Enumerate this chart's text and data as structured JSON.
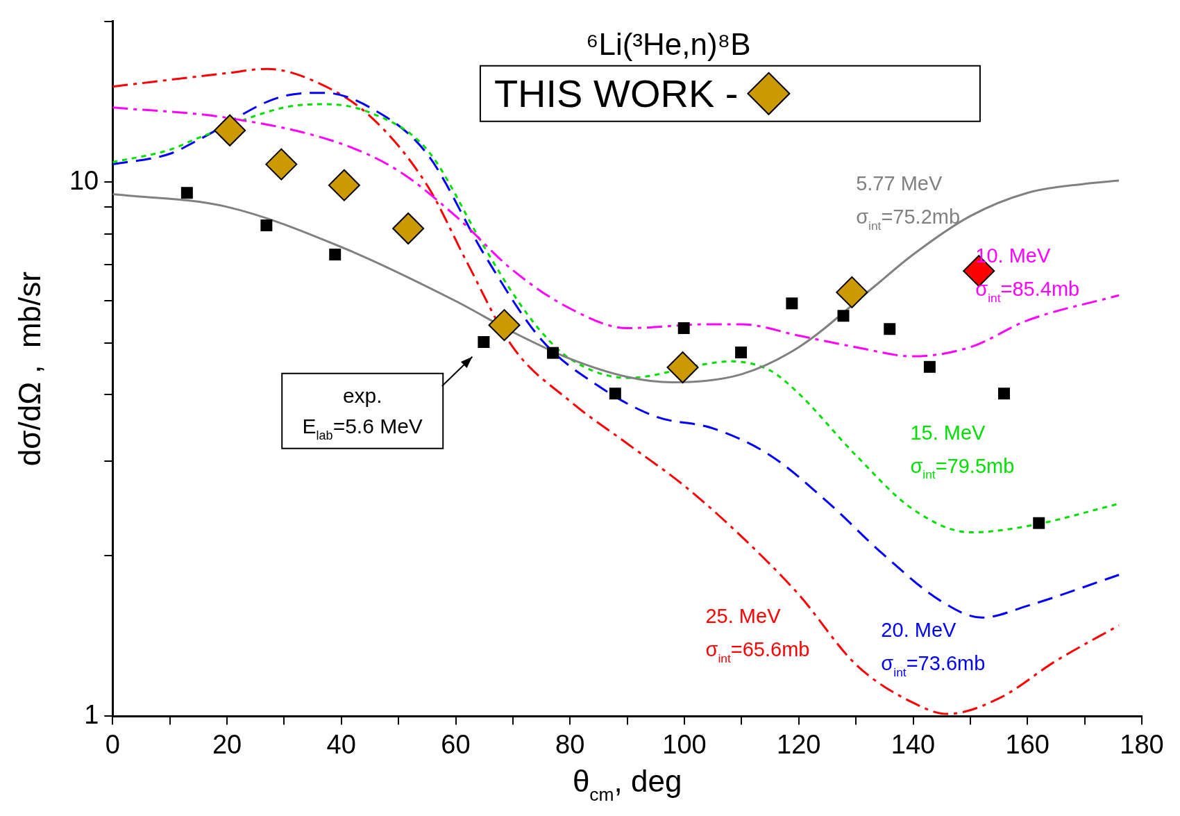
{
  "chart_data": {
    "type": "line",
    "title": "⁶Li(³He,n)⁸B",
    "xlabel": "θ$_{cm}$, deg",
    "ylabel": "dσ/dΩ ,  mb/sr",
    "log": "y",
    "grid": false,
    "legend": "top",
    "xlim": [
      0,
      180
    ],
    "xticks": [
      0,
      {
        "value": 10,
        "label": null
      },
      20,
      {
        "value": 30,
        "label": null
      },
      40,
      {
        "value": 50,
        "label": null
      },
      60,
      {
        "value": 70,
        "label": null
      },
      80,
      {
        "value": 90,
        "label": null
      },
      100,
      {
        "value": 110,
        "label": null
      },
      120,
      {
        "value": 130,
        "label": null
      },
      140,
      {
        "value": 150,
        "label": null
      },
      160,
      {
        "value": 170,
        "label": null
      },
      180
    ],
    "ylim": [
      1,
      20
    ],
    "yticks": [
      1,
      {
        "value": 2,
        "label": null
      },
      {
        "value": 3,
        "label": null
      },
      {
        "value": 4,
        "label": null
      },
      {
        "value": 5,
        "label": null
      },
      {
        "value": 6,
        "label": null
      },
      {
        "value": 7,
        "label": null
      },
      {
        "value": 8,
        "label": null
      },
      {
        "value": 9,
        "label": null
      },
      10,
      {
        "value": 20,
        "label": null
      }
    ],
    "series": [
      {
        "name": "5.77 MeV\nσ$_{int}$=75.2mb",
        "color": "#808080",
        "line_style": "solid",
        "marker": "none",
        "x": [
          0,
          20,
          40,
          60,
          70,
          80,
          90,
          98,
          110,
          120,
          133,
          140,
          150,
          160,
          170,
          176
        ],
        "values": [
          9.5,
          8.99,
          7.56,
          5.99,
          5.24,
          4.67,
          4.32,
          4.22,
          4.37,
          4.91,
          6.35,
          7.32,
          8.64,
          9.55,
          9.93,
          10.07
        ]
      },
      {
        "name": "10. MeV\nσ$_{int}$=85.4mb",
        "color": "#ff00ff",
        "line_style": "dashdot",
        "marker": "none",
        "x": [
          0,
          20,
          40,
          50,
          60,
          70,
          80,
          90,
          104,
          110,
          120,
          130,
          140,
          150,
          160,
          176
        ],
        "values": [
          13.8,
          13.2,
          11.8,
          10.5,
          8.64,
          6.84,
          5.8,
          5.33,
          5.42,
          5.42,
          5.16,
          4.91,
          4.72,
          4.91,
          5.51,
          6.14
        ]
      },
      {
        "name": "15. MeV\nσ$_{int}$=79.5mb",
        "color": "#00e000",
        "line_style": "dotted",
        "marker": "none",
        "x": [
          0,
          10,
          15,
          30,
          37,
          45,
          55,
          65,
          70,
          75,
          80,
          90,
          104,
          108,
          115,
          120,
          130,
          140,
          150,
          160,
          176
        ],
        "values": [
          10.9,
          11.5,
          12.1,
          13.8,
          14.0,
          13.5,
          11.5,
          7.56,
          6.19,
          5.24,
          4.67,
          4.3,
          4.57,
          4.62,
          4.44,
          4.02,
          3.08,
          2.44,
          2.21,
          2.27,
          2.5
        ]
      },
      {
        "name": "20. MeV\nσ$_{int}$=73.6mb",
        "color": "#0000ff",
        "line_style": "dashed",
        "marker": "none",
        "x": [
          0,
          10,
          15,
          30,
          37,
          45,
          55,
          65,
          75,
          85,
          95,
          105,
          115,
          125,
          135,
          145,
          152,
          160,
          176
        ],
        "values": [
          10.8,
          11.3,
          12.0,
          14.5,
          14.7,
          13.8,
          11.3,
          7.32,
          5.07,
          4.15,
          3.64,
          3.46,
          3.08,
          2.52,
          2.0,
          1.64,
          1.53,
          1.61,
          1.84
        ]
      },
      {
        "name": "25. MeV\nσ$_{int}$=65.6mb",
        "color": "#ff0000",
        "line_style": "dashdot",
        "marker": "none",
        "x": [
          0,
          20,
          27,
          35,
          45,
          55,
          62,
          70,
          80,
          90,
          100,
          110,
          120,
          130,
          140,
          146,
          155,
          165,
          176
        ],
        "values": [
          15.1,
          16.0,
          16.3,
          15.5,
          13.3,
          9.87,
          7.07,
          4.91,
          3.89,
          3.24,
          2.7,
          2.17,
          1.69,
          1.25,
          1.06,
          1.01,
          1.08,
          1.27,
          1.48
        ]
      },
      {
        "name": "exp.\nE$_{lab}$=5.6 MeV",
        "type": "scatter",
        "color": "#000000",
        "marker": "square",
        "x": [
          13,
          26.9,
          38.9,
          64.9,
          77,
          87.9,
          99.9,
          109.9,
          118.8,
          127.8,
          135.9,
          142.9,
          155.9,
          162
        ],
        "values": [
          9.55,
          8.3,
          7.32,
          5.02,
          4.79,
          4.02,
          5.33,
          4.8,
          5.93,
          5.62,
          5.31,
          4.51,
          4.02,
          2.3
        ]
      },
      {
        "name": "THIS WORK -",
        "type": "scatter",
        "color": "#cc9900",
        "marker": "diamond",
        "x": [
          20.5,
          29.5,
          40.5,
          51.7,
          68.5,
          99.7,
          129.3
        ],
        "values": [
          12.5,
          10.8,
          9.87,
          8.19,
          5.4,
          4.5,
          6.22
        ]
      },
      {
        "type": "scatter",
        "color": "#ff0000",
        "marker": "diamond",
        "x": [
          151.5
        ],
        "values": [
          6.82
        ]
      }
    ]
  }
}
